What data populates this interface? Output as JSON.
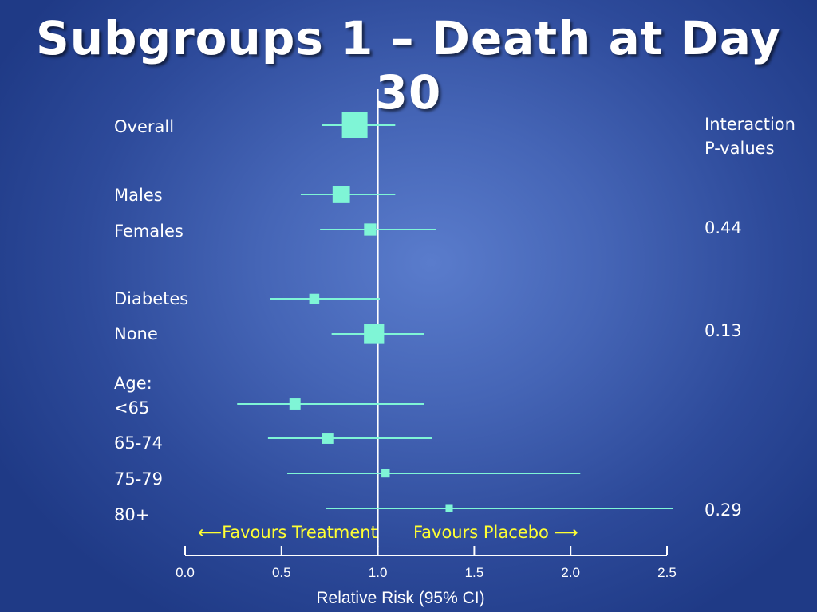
{
  "title": "Subgroups 1 – Death at Day 30",
  "p_values_header": [
    "Interaction",
    "P-values"
  ],
  "favours_treatment": "⟵Favours Treatment",
  "favours_placebo": "Favours Placebo ⟶",
  "colors": {
    "background": "#3d5fb3",
    "marker": "#7ff5d6",
    "reference_line": "#ffffff",
    "favours_text": "#ffff33"
  },
  "chart_data": {
    "type": "forest",
    "xlabel": "Relative Risk (95% CI)",
    "xlim": [
      0.0,
      2.5
    ],
    "xticks": [
      0.0,
      0.5,
      1.0,
      1.5,
      2.0,
      2.5
    ],
    "xtick_labels": [
      "0.0",
      "0.5",
      "1.0",
      "1.5",
      "2.0",
      "2.5"
    ],
    "reference_value": 1.0,
    "rows": [
      {
        "label": "Overall",
        "est": 0.88,
        "lo": 0.71,
        "hi": 1.09,
        "weight": 1.0
      },
      {
        "label": "Males",
        "est": 0.81,
        "lo": 0.6,
        "hi": 1.09,
        "weight": 0.62
      },
      {
        "label": "Females",
        "est": 0.96,
        "lo": 0.7,
        "hi": 1.3,
        "weight": 0.38
      },
      {
        "label": "Diabetes",
        "est": 0.67,
        "lo": 0.44,
        "hi": 1.01,
        "weight": 0.28
      },
      {
        "label": "None",
        "est": 0.98,
        "lo": 0.76,
        "hi": 1.24,
        "weight": 0.75
      },
      {
        "label": "<65",
        "est": 0.57,
        "lo": 0.27,
        "hi": 1.24,
        "weight": 0.33
      },
      {
        "label": "65-74",
        "est": 0.74,
        "lo": 0.43,
        "hi": 1.28,
        "weight": 0.33
      },
      {
        "label": "75-79",
        "est": 1.04,
        "lo": 0.53,
        "hi": 2.05,
        "weight": 0.2
      },
      {
        "label": "80+",
        "est": 1.37,
        "lo": 0.73,
        "hi": 2.53,
        "weight": 0.15
      }
    ],
    "group_header": "Age:",
    "p_values": [
      "0.44",
      "0.13",
      "0.29"
    ]
  }
}
